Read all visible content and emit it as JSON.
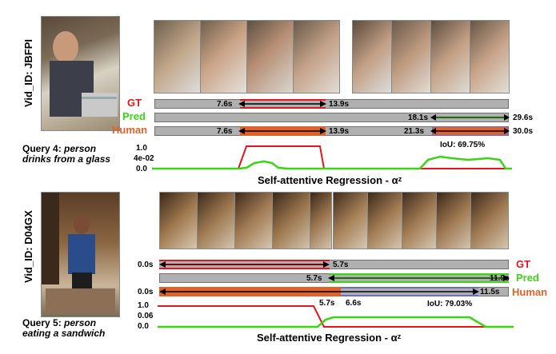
{
  "top": {
    "vid_id": "Vid_ID: JBFPI",
    "legend": {
      "gt": "GT",
      "pred": "Pred",
      "human": "Human"
    },
    "labels": {
      "gt_start": "7.6s",
      "gt_end": "13.9s",
      "pred_start": "18.1s",
      "pred_end": "29.6s",
      "human_start": "7.6s",
      "human_end": "13.9s",
      "human2_start": "21.3s",
      "human2_end": "30.0s"
    },
    "query_prefix": "Query 4: ",
    "query_text": "person drinks from a glass",
    "yticks": [
      "1.0",
      "4e-02",
      "0.0"
    ],
    "iou": "IoU: 69.75%",
    "caption": "Self-attentive Regression - αᶻ"
  },
  "bottom": {
    "vid_id": "Vid_ID: D04GX",
    "legend": {
      "gt": "GT",
      "pred": "Pred",
      "human": "Human"
    },
    "labels": {
      "gt_start": "0.0s",
      "gt_end": "5.7s",
      "pred_start": "5.7s",
      "pred_end": "11.9s",
      "human_start": "0.0s",
      "human_mid": "6.6s",
      "human_end": "11.5s",
      "extra": "5.7s"
    },
    "query_prefix": "Query 5: ",
    "query_text": "person eating a sandwich",
    "yticks": [
      "1.0",
      "0.06",
      "0.0"
    ],
    "iou": "IoU: 79.03%",
    "caption": "Self-attentive Regression - αᶻ"
  },
  "colors": {
    "gt": "#e8141b",
    "pred": "#39d613",
    "human": "#e0622b",
    "bar": "#b0b0b0",
    "human_box": "#6b6bd6"
  }
}
